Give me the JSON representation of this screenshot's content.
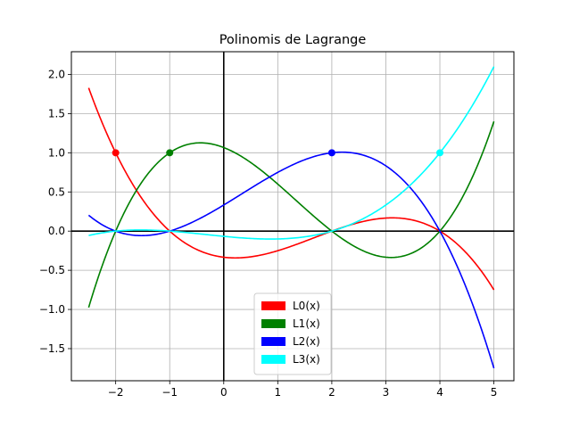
{
  "chart_data": {
    "type": "line",
    "title": "Polinomis de Lagrange",
    "xlabel": "",
    "ylabel": "",
    "xlim": [
      -2.82,
      5.37
    ],
    "ylim": [
      -1.91,
      2.29
    ],
    "xticks": [
      -2,
      -1,
      0,
      1,
      2,
      3,
      4,
      5
    ],
    "xtick_labels": [
      "−2",
      "−1",
      "0",
      "1",
      "2",
      "3",
      "4",
      "5"
    ],
    "yticks": [
      -1.5,
      -1.0,
      -0.5,
      0.0,
      0.5,
      1.0,
      1.5,
      2.0
    ],
    "ytick_labels": [
      "−1.5",
      "−1.0",
      "−0.5",
      "0.0",
      "0.5",
      "1.0",
      "1.5",
      "2.0"
    ],
    "grid": true,
    "axis_lines": {
      "x_zero": true,
      "y_zero": true
    },
    "nodes_x": [
      -2,
      -1,
      2,
      4
    ],
    "x_range": [
      -2.5,
      5
    ],
    "legend_position": "lower-center",
    "series": [
      {
        "name": "L0(x)",
        "color": "#ff0000",
        "node": [
          -2,
          1
        ]
      },
      {
        "name": "L1(x)",
        "color": "#008000",
        "node": [
          -1,
          1
        ]
      },
      {
        "name": "L2(x)",
        "color": "#0000ff",
        "node": [
          2,
          1
        ]
      },
      {
        "name": "L3(x)",
        "color": "#00ffff",
        "node": [
          4,
          1
        ]
      }
    ]
  }
}
